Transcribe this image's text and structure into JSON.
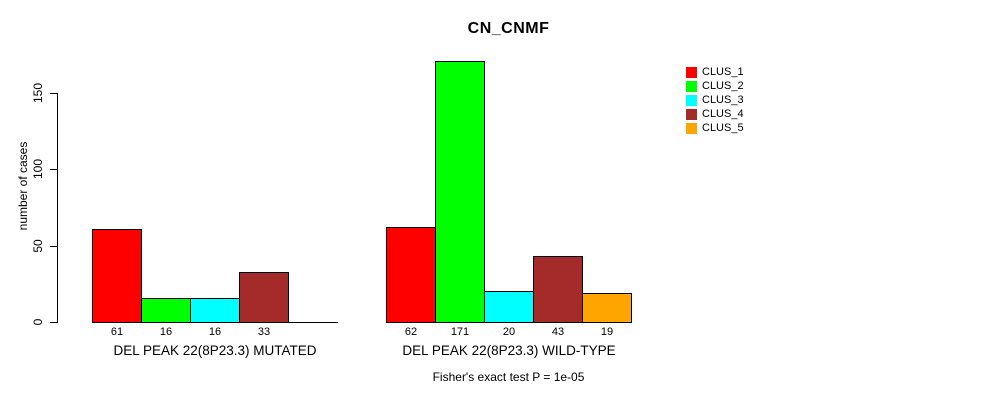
{
  "chart_data": {
    "type": "bar",
    "title": "CN_CNMF",
    "xlabel": "",
    "ylabel": "number of cases",
    "ylim": [
      0,
      175
    ],
    "yticks": [
      0,
      50,
      100,
      150
    ],
    "grid": false,
    "legend_position": "top-right",
    "categories": [
      "CLUS_1",
      "CLUS_2",
      "CLUS_3",
      "CLUS_4",
      "CLUS_5"
    ],
    "colors": [
      "#FF0000",
      "#00FF00",
      "#00FFFF",
      "#A52A2A",
      "#FFA500"
    ],
    "groups": [
      {
        "label": "DEL PEAK 22(8P23.3) MUTATED",
        "values": [
          61,
          16,
          16,
          33,
          0
        ],
        "bar_value_labels": [
          "61",
          "16",
          "16",
          "33",
          ""
        ]
      },
      {
        "label": "DEL PEAK 22(8P23.3) WILD-TYPE",
        "values": [
          62,
          171,
          20,
          43,
          19
        ],
        "bar_value_labels": [
          "62",
          "171",
          "20",
          "43",
          "19"
        ]
      }
    ],
    "legend": [
      "CLUS_1",
      "CLUS_2",
      "CLUS_3",
      "CLUS_4",
      "CLUS_5"
    ],
    "annotation": "Fisher's exact test P = 1e-05"
  }
}
